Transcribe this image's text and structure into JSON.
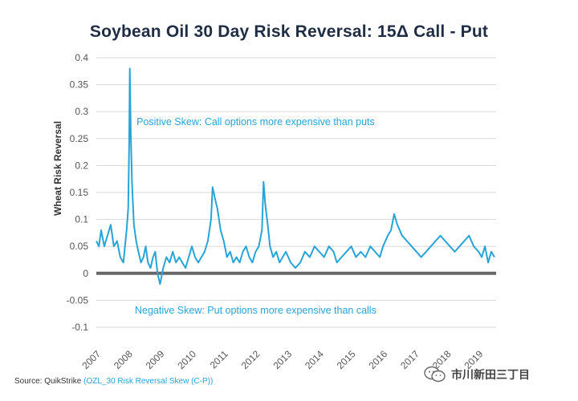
{
  "chart_data": {
    "type": "line",
    "title": "Soybean Oil 30 Day Risk Reversal: 15Δ Call - Put",
    "ylabel": "Wheat Risk Reversal",
    "xlabel": "",
    "xlim": [
      2007,
      2019.55
    ],
    "ylim": [
      -0.1,
      0.4
    ],
    "yticks": [
      "0.4",
      "0.35",
      "0.3",
      "0.25",
      "0.2",
      "0.15",
      "0.1",
      "0.05",
      "0",
      "-0.05",
      "-0.1"
    ],
    "xticks": [
      "2007",
      "2008",
      "2009",
      "2010",
      "2011",
      "2012",
      "2013",
      "2014",
      "2015",
      "2016",
      "2017",
      "2018",
      "2019"
    ],
    "grid": true,
    "zero_line": true,
    "series": [
      {
        "color": "#27a4d8",
        "x": [
          2007.0,
          2007.08,
          2007.15,
          2007.25,
          2007.35,
          2007.45,
          2007.55,
          2007.65,
          2007.75,
          2007.85,
          2007.95,
          2008.0,
          2008.03,
          2008.05,
          2008.08,
          2008.12,
          2008.18,
          2008.25,
          2008.32,
          2008.4,
          2008.48,
          2008.55,
          2008.62,
          2008.7,
          2008.78,
          2008.85,
          2008.92,
          2009.0,
          2009.1,
          2009.2,
          2009.3,
          2009.4,
          2009.5,
          2009.6,
          2009.7,
          2009.8,
          2009.9,
          2010.0,
          2010.1,
          2010.2,
          2010.3,
          2010.4,
          2010.5,
          2010.6,
          2010.65,
          2010.72,
          2010.8,
          2010.9,
          2011.0,
          2011.1,
          2011.2,
          2011.3,
          2011.4,
          2011.5,
          2011.6,
          2011.7,
          2011.8,
          2011.9,
          2012.0,
          2012.1,
          2012.2,
          2012.25,
          2012.3,
          2012.38,
          2012.45,
          2012.55,
          2012.65,
          2012.75,
          2012.85,
          2012.95,
          2013.1,
          2013.25,
          2013.4,
          2013.55,
          2013.7,
          2013.85,
          2014.0,
          2014.15,
          2014.3,
          2014.45,
          2014.55,
          2014.7,
          2014.85,
          2015.0,
          2015.15,
          2015.3,
          2015.45,
          2015.6,
          2015.75,
          2015.9,
          2016.0,
          2016.15,
          2016.25,
          2016.35,
          2016.45,
          2016.6,
          2016.75,
          2016.9,
          2017.05,
          2017.2,
          2017.35,
          2017.5,
          2017.65,
          2017.8,
          2017.95,
          2018.1,
          2018.25,
          2018.4,
          2018.55,
          2018.7,
          2018.85,
          2019.0,
          2019.1,
          2019.2,
          2019.3,
          2019.4,
          2019.5
        ],
        "y": [
          0.06,
          0.05,
          0.08,
          0.05,
          0.07,
          0.09,
          0.05,
          0.06,
          0.03,
          0.02,
          0.08,
          0.12,
          0.24,
          0.38,
          0.26,
          0.17,
          0.09,
          0.06,
          0.04,
          0.02,
          0.03,
          0.05,
          0.02,
          0.01,
          0.03,
          0.04,
          0.0,
          -0.02,
          0.01,
          0.03,
          0.02,
          0.04,
          0.02,
          0.03,
          0.02,
          0.01,
          0.03,
          0.05,
          0.03,
          0.02,
          0.03,
          0.04,
          0.06,
          0.1,
          0.16,
          0.14,
          0.12,
          0.08,
          0.06,
          0.03,
          0.04,
          0.02,
          0.03,
          0.02,
          0.04,
          0.05,
          0.03,
          0.02,
          0.04,
          0.05,
          0.08,
          0.17,
          0.13,
          0.09,
          0.05,
          0.03,
          0.04,
          0.02,
          0.03,
          0.04,
          0.02,
          0.01,
          0.02,
          0.04,
          0.03,
          0.05,
          0.04,
          0.03,
          0.05,
          0.04,
          0.02,
          0.03,
          0.04,
          0.05,
          0.03,
          0.04,
          0.03,
          0.05,
          0.04,
          0.03,
          0.05,
          0.07,
          0.08,
          0.11,
          0.09,
          0.07,
          0.06,
          0.05,
          0.04,
          0.03,
          0.04,
          0.05,
          0.06,
          0.07,
          0.06,
          0.05,
          0.04,
          0.05,
          0.06,
          0.07,
          0.05,
          0.04,
          0.03,
          0.05,
          0.02,
          0.04,
          0.03
        ]
      }
    ],
    "annotations": [
      {
        "text": "Positive Skew: Call options more expensive than puts",
        "x": 2012.0,
        "y": 0.275
      },
      {
        "text": "Negative Skew: Put options more expensive than calls",
        "x": 2012.0,
        "y": -0.075
      }
    ]
  },
  "footer": {
    "source_label": "Source: QuikStrike",
    "source_code": "(OZL_30 Risk Reversal Skew (C-P))"
  },
  "watermark": {
    "icon": "wechat-icon",
    "text": "市川新田三丁目"
  }
}
